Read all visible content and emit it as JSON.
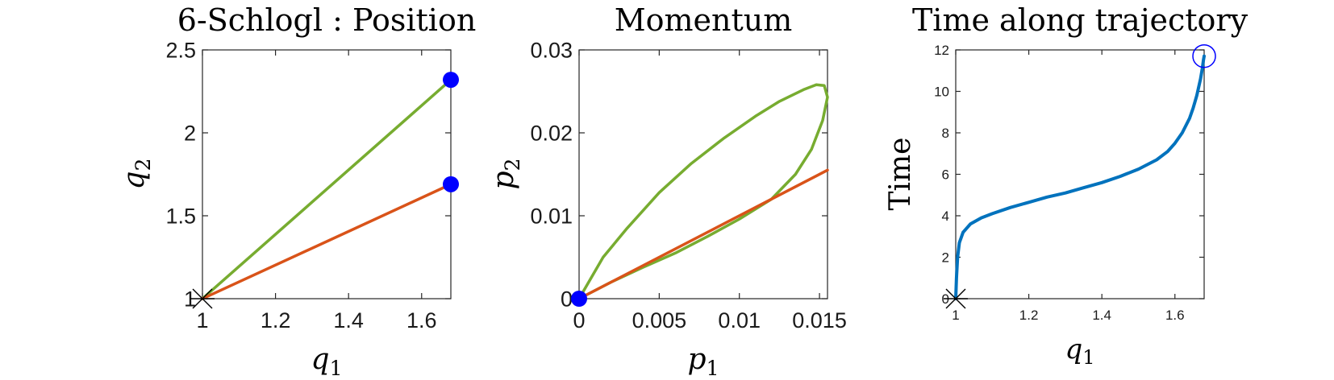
{
  "chart_data": [
    {
      "type": "line",
      "title": "6-Schlogl : Position",
      "xlabel": "q1",
      "ylabel": "q2",
      "xlim": [
        1,
        1.68
      ],
      "ylim": [
        1,
        2.5
      ],
      "xticks": [
        "1",
        "1.2",
        "1.4",
        "1.6"
      ],
      "yticks": [
        "1",
        "1.5",
        "2",
        "2.5"
      ],
      "grid": false,
      "series": [
        {
          "color": "#77AC30",
          "x": [
            1,
            1.68
          ],
          "y": [
            1,
            2.32
          ]
        },
        {
          "color": "#D95319",
          "x": [
            1,
            1.68
          ],
          "y": [
            1,
            1.69
          ]
        }
      ],
      "markers": [
        {
          "type": "x-star",
          "x": 1,
          "y": 1,
          "color": "#000000"
        },
        {
          "type": "filled-circle",
          "x": 1.68,
          "y": 2.32,
          "color": "#0000FF"
        },
        {
          "type": "filled-circle",
          "x": 1.68,
          "y": 1.69,
          "color": "#0000FF"
        }
      ]
    },
    {
      "type": "line",
      "title": "Momentum",
      "xlabel": "p1",
      "ylabel": "p2",
      "xlim": [
        0,
        0.0155
      ],
      "ylim": [
        0,
        0.03
      ],
      "xticks": [
        "0",
        "0.005",
        "0.01",
        "0.015"
      ],
      "yticks": [
        "0",
        "0.01",
        "0.02",
        "0.03"
      ],
      "grid": false,
      "series": [
        {
          "color": "#77AC30",
          "x": [
            0,
            0.002,
            0.004,
            0.006,
            0.008,
            0.01,
            0.012,
            0.0135,
            0.0145,
            0.0152,
            0.0155,
            0.0153,
            0.0148,
            0.014,
            0.0125,
            0.011,
            0.009,
            0.007,
            0.005,
            0.003,
            0.0015,
            0
          ],
          "y": [
            0,
            0.002,
            0.0038,
            0.0055,
            0.0075,
            0.0096,
            0.012,
            0.015,
            0.018,
            0.0215,
            0.0243,
            0.0257,
            0.0258,
            0.0252,
            0.0238,
            0.022,
            0.0193,
            0.0163,
            0.0128,
            0.0085,
            0.005,
            0
          ]
        },
        {
          "color": "#D95319",
          "x": [
            0,
            0.0155
          ],
          "y": [
            0,
            0.0155
          ]
        }
      ],
      "markers": [
        {
          "type": "filled-circle",
          "x": 0,
          "y": 0,
          "color": "#0000FF"
        }
      ]
    },
    {
      "type": "line",
      "title": "Time along trajectory",
      "xlabel": "q1",
      "ylabel": "Time",
      "xlim": [
        1,
        1.68
      ],
      "ylim": [
        0,
        12
      ],
      "xticks": [
        "1",
        "1.2",
        "1.4",
        "1.6"
      ],
      "yticks": [
        "0",
        "2",
        "4",
        "6",
        "8",
        "10",
        "12"
      ],
      "grid": false,
      "series": [
        {
          "color": "#0072BD",
          "x": [
            1,
            1.002,
            1.005,
            1.01,
            1.02,
            1.04,
            1.07,
            1.1,
            1.15,
            1.2,
            1.25,
            1.3,
            1.35,
            1.4,
            1.45,
            1.5,
            1.55,
            1.58,
            1.6,
            1.62,
            1.64,
            1.65,
            1.66,
            1.67,
            1.675,
            1.678,
            1.68
          ],
          "y": [
            0,
            1.0,
            2.0,
            2.7,
            3.2,
            3.6,
            3.9,
            4.1,
            4.4,
            4.65,
            4.9,
            5.1,
            5.35,
            5.6,
            5.9,
            6.25,
            6.7,
            7.1,
            7.5,
            8.0,
            8.7,
            9.2,
            9.8,
            10.6,
            11.1,
            11.5,
            11.7
          ]
        }
      ],
      "markers": [
        {
          "type": "x-star",
          "x": 1,
          "y": 0,
          "color": "#000000"
        },
        {
          "type": "open-circle",
          "x": 1.68,
          "y": 11.7,
          "color": "#0000FF"
        }
      ]
    }
  ]
}
